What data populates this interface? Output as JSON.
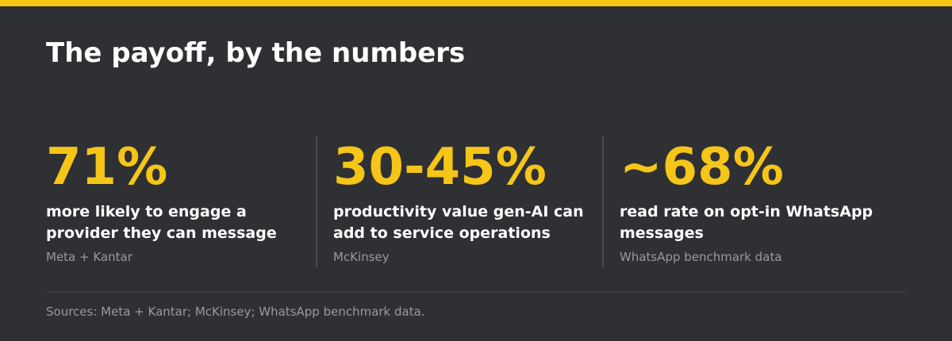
{
  "header": {
    "title": "The payoff, by the numbers"
  },
  "stats": [
    {
      "value": "71%",
      "description": "more likely to engage a provider they can message",
      "source": "Meta + Kantar"
    },
    {
      "value": "30-45%",
      "description": "productivity value gen-AI can add to service operations",
      "source": "McKinsey"
    },
    {
      "value": "~68%",
      "description": "read rate on opt-in WhatsApp messages",
      "source": "WhatsApp benchmark data"
    }
  ],
  "footer": {
    "sources": "Sources: Meta + Kantar; McKinsey; WhatsApp benchmark data."
  }
}
